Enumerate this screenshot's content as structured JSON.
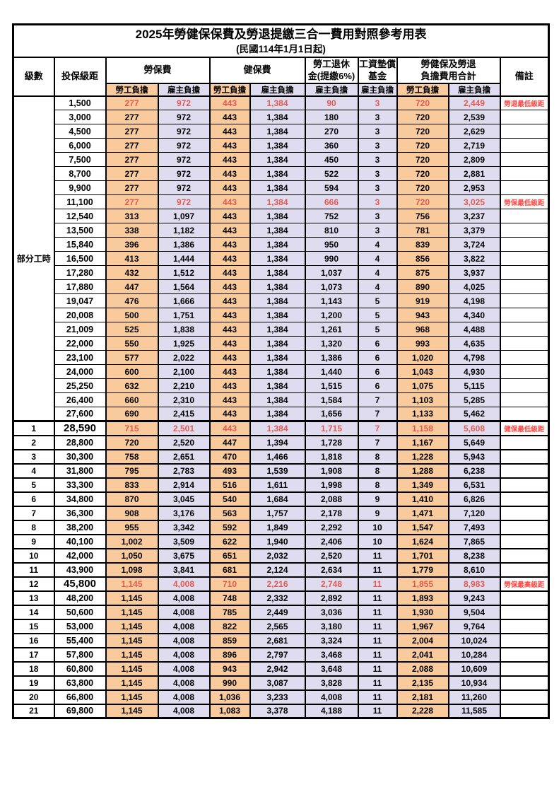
{
  "title": "2025年勞健保保費及勞退提繳三合一費用對照參考用表",
  "subtitle": "(民國114年1月1日起)",
  "colors": {
    "employee_bg": "#f9cb9c",
    "employer_bg": "#dfdcf0",
    "highlight_value_red": "#e05a50",
    "remark_red": "#ff4642",
    "grid": "#000000"
  },
  "header": {
    "level": "級數",
    "bracket": "投保級距",
    "labor_insurance": "勞保費",
    "health_insurance": "健保費",
    "pension_line1": "勞工退休",
    "pension_line2": "金(提繳6%)",
    "wage_fund_line1": "工資墊償",
    "wage_fund_line2": "基金",
    "total_line1": "勞健保及勞退",
    "total_line2": "負擔費用合計",
    "remark": "備註",
    "employee": "勞工負擔",
    "employer": "雇主負擔"
  },
  "table": {
    "part_time_label": "部分工時",
    "part_time_rows": [
      {
        "bracket": "1,500",
        "values": [
          "277",
          "972",
          "443",
          "1,384",
          "90",
          "3",
          "720",
          "2,449"
        ],
        "remark": "勞退最低級距",
        "highlight": true
      },
      {
        "bracket": "3,000",
        "values": [
          "277",
          "972",
          "443",
          "1,384",
          "180",
          "3",
          "720",
          "2,539"
        ],
        "remark": "",
        "highlight": false
      },
      {
        "bracket": "4,500",
        "values": [
          "277",
          "972",
          "443",
          "1,384",
          "270",
          "3",
          "720",
          "2,629"
        ],
        "remark": "",
        "highlight": false
      },
      {
        "bracket": "6,000",
        "values": [
          "277",
          "972",
          "443",
          "1,384",
          "360",
          "3",
          "720",
          "2,719"
        ],
        "remark": "",
        "highlight": false
      },
      {
        "bracket": "7,500",
        "values": [
          "277",
          "972",
          "443",
          "1,384",
          "450",
          "3",
          "720",
          "2,809"
        ],
        "remark": "",
        "highlight": false
      },
      {
        "bracket": "8,700",
        "values": [
          "277",
          "972",
          "443",
          "1,384",
          "522",
          "3",
          "720",
          "2,881"
        ],
        "remark": "",
        "highlight": false
      },
      {
        "bracket": "9,900",
        "values": [
          "277",
          "972",
          "443",
          "1,384",
          "594",
          "3",
          "720",
          "2,953"
        ],
        "remark": "",
        "highlight": false
      },
      {
        "bracket": "11,100",
        "values": [
          "277",
          "972",
          "443",
          "1,384",
          "666",
          "3",
          "720",
          "3,025"
        ],
        "remark": "勞保最低級距",
        "highlight": true
      },
      {
        "bracket": "12,540",
        "values": [
          "313",
          "1,097",
          "443",
          "1,384",
          "752",
          "3",
          "756",
          "3,237"
        ],
        "remark": "",
        "highlight": false
      },
      {
        "bracket": "13,500",
        "values": [
          "338",
          "1,182",
          "443",
          "1,384",
          "810",
          "3",
          "781",
          "3,379"
        ],
        "remark": "",
        "highlight": false
      },
      {
        "bracket": "15,840",
        "values": [
          "396",
          "1,386",
          "443",
          "1,384",
          "950",
          "4",
          "839",
          "3,724"
        ],
        "remark": "",
        "highlight": false
      },
      {
        "bracket": "16,500",
        "values": [
          "413",
          "1,444",
          "443",
          "1,384",
          "990",
          "4",
          "856",
          "3,822"
        ],
        "remark": "",
        "highlight": false
      },
      {
        "bracket": "17,280",
        "values": [
          "432",
          "1,512",
          "443",
          "1,384",
          "1,037",
          "4",
          "875",
          "3,937"
        ],
        "remark": "",
        "highlight": false
      },
      {
        "bracket": "17,880",
        "values": [
          "447",
          "1,564",
          "443",
          "1,384",
          "1,073",
          "4",
          "890",
          "4,025"
        ],
        "remark": "",
        "highlight": false
      },
      {
        "bracket": "19,047",
        "values": [
          "476",
          "1,666",
          "443",
          "1,384",
          "1,143",
          "5",
          "919",
          "4,198"
        ],
        "remark": "",
        "highlight": false
      },
      {
        "bracket": "20,008",
        "values": [
          "500",
          "1,751",
          "443",
          "1,384",
          "1,200",
          "5",
          "943",
          "4,340"
        ],
        "remark": "",
        "highlight": false
      },
      {
        "bracket": "21,009",
        "values": [
          "525",
          "1,838",
          "443",
          "1,384",
          "1,261",
          "5",
          "968",
          "4,488"
        ],
        "remark": "",
        "highlight": false
      },
      {
        "bracket": "22,000",
        "values": [
          "550",
          "1,925",
          "443",
          "1,384",
          "1,320",
          "6",
          "993",
          "4,635"
        ],
        "remark": "",
        "highlight": false
      },
      {
        "bracket": "23,100",
        "values": [
          "577",
          "2,022",
          "443",
          "1,384",
          "1,386",
          "6",
          "1,020",
          "4,798"
        ],
        "remark": "",
        "highlight": false
      },
      {
        "bracket": "24,000",
        "values": [
          "600",
          "2,100",
          "443",
          "1,384",
          "1,440",
          "6",
          "1,043",
          "4,930"
        ],
        "remark": "",
        "highlight": false
      },
      {
        "bracket": "25,250",
        "values": [
          "632",
          "2,210",
          "443",
          "1,384",
          "1,515",
          "6",
          "1,075",
          "5,115"
        ],
        "remark": "",
        "highlight": false
      },
      {
        "bracket": "26,400",
        "values": [
          "660",
          "2,310",
          "443",
          "1,384",
          "1,584",
          "7",
          "1,103",
          "5,285"
        ],
        "remark": "",
        "highlight": false
      },
      {
        "bracket": "27,600",
        "values": [
          "690",
          "2,415",
          "443",
          "1,384",
          "1,656",
          "7",
          "1,133",
          "5,462"
        ],
        "remark": "",
        "highlight": false
      }
    ],
    "level_rows": [
      {
        "level": "1",
        "bracket": "28,590",
        "values": [
          "715",
          "2,501",
          "443",
          "1,384",
          "1,715",
          "7",
          "1,158",
          "5,608"
        ],
        "remark": "健保最低級距",
        "highlight": true,
        "big_bracket": true
      },
      {
        "level": "2",
        "bracket": "28,800",
        "values": [
          "720",
          "2,520",
          "447",
          "1,394",
          "1,728",
          "7",
          "1,167",
          "5,649"
        ],
        "remark": "",
        "highlight": false,
        "big_bracket": false
      },
      {
        "level": "3",
        "bracket": "30,300",
        "values": [
          "758",
          "2,651",
          "470",
          "1,466",
          "1,818",
          "8",
          "1,228",
          "5,943"
        ],
        "remark": "",
        "highlight": false,
        "big_bracket": false
      },
      {
        "level": "4",
        "bracket": "31,800",
        "values": [
          "795",
          "2,783",
          "493",
          "1,539",
          "1,908",
          "8",
          "1,288",
          "6,238"
        ],
        "remark": "",
        "highlight": false,
        "big_bracket": false
      },
      {
        "level": "5",
        "bracket": "33,300",
        "values": [
          "833",
          "2,914",
          "516",
          "1,611",
          "1,998",
          "8",
          "1,349",
          "6,531"
        ],
        "remark": "",
        "highlight": false,
        "big_bracket": false
      },
      {
        "level": "6",
        "bracket": "34,800",
        "values": [
          "870",
          "3,045",
          "540",
          "1,684",
          "2,088",
          "9",
          "1,410",
          "6,826"
        ],
        "remark": "",
        "highlight": false,
        "big_bracket": false
      },
      {
        "level": "7",
        "bracket": "36,300",
        "values": [
          "908",
          "3,176",
          "563",
          "1,757",
          "2,178",
          "9",
          "1,471",
          "7,120"
        ],
        "remark": "",
        "highlight": false,
        "big_bracket": false
      },
      {
        "level": "8",
        "bracket": "38,200",
        "values": [
          "955",
          "3,342",
          "592",
          "1,849",
          "2,292",
          "10",
          "1,547",
          "7,493"
        ],
        "remark": "",
        "highlight": false,
        "big_bracket": false
      },
      {
        "level": "9",
        "bracket": "40,100",
        "values": [
          "1,002",
          "3,509",
          "622",
          "1,940",
          "2,406",
          "10",
          "1,624",
          "7,865"
        ],
        "remark": "",
        "highlight": false,
        "big_bracket": false
      },
      {
        "level": "10",
        "bracket": "42,000",
        "values": [
          "1,050",
          "3,675",
          "651",
          "2,032",
          "2,520",
          "11",
          "1,701",
          "8,238"
        ],
        "remark": "",
        "highlight": false,
        "big_bracket": false
      },
      {
        "level": "11",
        "bracket": "43,900",
        "values": [
          "1,098",
          "3,841",
          "681",
          "2,124",
          "2,634",
          "11",
          "1,779",
          "8,610"
        ],
        "remark": "",
        "highlight": false,
        "big_bracket": false
      },
      {
        "level": "12",
        "bracket": "45,800",
        "values": [
          "1,145",
          "4,008",
          "710",
          "2,216",
          "2,748",
          "11",
          "1,855",
          "8,983"
        ],
        "remark": "勞保最高級距",
        "highlight": true,
        "big_bracket": true
      },
      {
        "level": "13",
        "bracket": "48,200",
        "values": [
          "1,145",
          "4,008",
          "748",
          "2,332",
          "2,892",
          "11",
          "1,893",
          "9,243"
        ],
        "remark": "",
        "highlight": false,
        "big_bracket": false
      },
      {
        "level": "14",
        "bracket": "50,600",
        "values": [
          "1,145",
          "4,008",
          "785",
          "2,449",
          "3,036",
          "11",
          "1,930",
          "9,504"
        ],
        "remark": "",
        "highlight": false,
        "big_bracket": false
      },
      {
        "level": "15",
        "bracket": "53,000",
        "values": [
          "1,145",
          "4,008",
          "822",
          "2,565",
          "3,180",
          "11",
          "1,967",
          "9,764"
        ],
        "remark": "",
        "highlight": false,
        "big_bracket": false
      },
      {
        "level": "16",
        "bracket": "55,400",
        "values": [
          "1,145",
          "4,008",
          "859",
          "2,681",
          "3,324",
          "11",
          "2,004",
          "10,024"
        ],
        "remark": "",
        "highlight": false,
        "big_bracket": false
      },
      {
        "level": "17",
        "bracket": "57,800",
        "values": [
          "1,145",
          "4,008",
          "896",
          "2,797",
          "3,468",
          "11",
          "2,041",
          "10,284"
        ],
        "remark": "",
        "highlight": false,
        "big_bracket": false
      },
      {
        "level": "18",
        "bracket": "60,800",
        "values": [
          "1,145",
          "4,008",
          "943",
          "2,942",
          "3,648",
          "11",
          "2,088",
          "10,609"
        ],
        "remark": "",
        "highlight": false,
        "big_bracket": false
      },
      {
        "level": "19",
        "bracket": "63,800",
        "values": [
          "1,145",
          "4,008",
          "990",
          "3,087",
          "3,828",
          "11",
          "2,135",
          "10,934"
        ],
        "remark": "",
        "highlight": false,
        "big_bracket": false
      },
      {
        "level": "20",
        "bracket": "66,800",
        "values": [
          "1,145",
          "4,008",
          "1,036",
          "3,233",
          "4,008",
          "11",
          "2,181",
          "11,260"
        ],
        "remark": "",
        "highlight": false,
        "big_bracket": false
      },
      {
        "level": "21",
        "bracket": "69,800",
        "values": [
          "1,145",
          "4,008",
          "1,083",
          "3,378",
          "4,188",
          "11",
          "2,228",
          "11,585"
        ],
        "remark": "",
        "highlight": false,
        "big_bracket": false
      }
    ]
  }
}
